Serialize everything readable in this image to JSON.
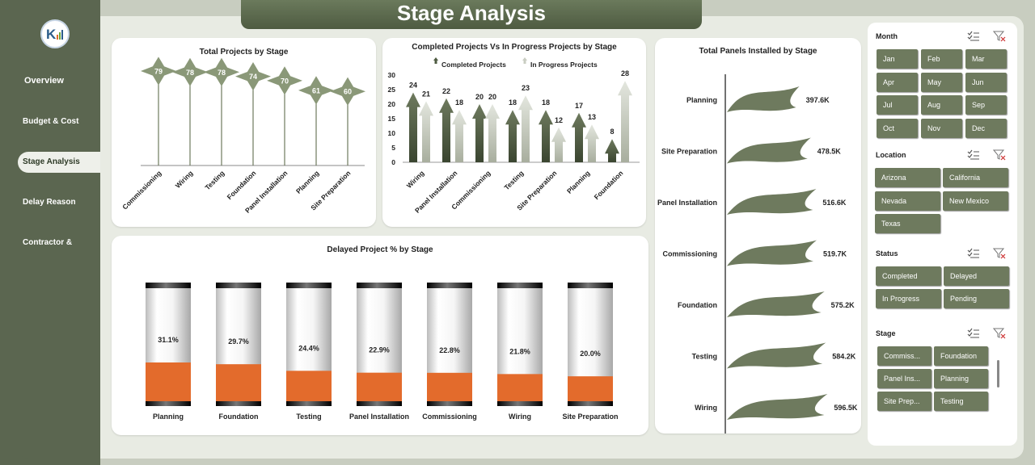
{
  "header": {
    "title": "Stage Analysis"
  },
  "nav": [
    {
      "label": "Overview"
    },
    {
      "label": "Budget & Cost"
    },
    {
      "label": "Stage Analysis"
    },
    {
      "label": "Delay Reason"
    },
    {
      "label": "Contractor &"
    }
  ],
  "charts": {
    "total_projects": {
      "title": "Total Projects by Stage",
      "chart_data": {
        "type": "bar",
        "categories": [
          "Commissioning",
          "Wiring",
          "Testing",
          "Foundation",
          "Panel Installation",
          "Planning",
          "Site Preparation"
        ],
        "values": [
          79,
          78,
          78,
          74,
          70,
          61,
          60
        ]
      }
    },
    "completed_vs_progress": {
      "title": "Completed Projects Vs In Progress Projects by Stage",
      "legend": [
        "Completed Projects",
        "In Progress Projects"
      ],
      "chart_data": {
        "type": "bar",
        "categories": [
          "Wiring",
          "Panel Installation",
          "Commissioning",
          "Testing",
          "Site Preparation",
          "Planning",
          "Foundation"
        ],
        "series": [
          {
            "name": "Completed Projects",
            "values": [
              24,
              22,
              20,
              18,
              18,
              17,
              8
            ]
          },
          {
            "name": "In Progress Projects",
            "values": [
              21,
              18,
              20,
              23,
              12,
              13,
              28
            ]
          }
        ],
        "yticks": [
          0,
          5,
          10,
          15,
          20,
          25,
          30
        ],
        "ylim": [
          0,
          30
        ]
      }
    },
    "panels_installed": {
      "title": "Total Panels Installed by Stage",
      "chart_data": {
        "type": "bar",
        "categories": [
          "Planning",
          "Site Preparation",
          "Panel Installation",
          "Commissioning",
          "Foundation",
          "Testing",
          "Wiring"
        ],
        "values": [
          397.6,
          478.5,
          516.6,
          519.7,
          575.2,
          584.2,
          596.5
        ],
        "labels": [
          "397.6K",
          "478.5K",
          "516.6K",
          "519.7K",
          "575.2K",
          "584.2K",
          "596.5K"
        ]
      }
    },
    "delayed_pct": {
      "title": "Delayed Project % by Stage",
      "chart_data": {
        "type": "bar",
        "categories": [
          "Planning",
          "Foundation",
          "Testing",
          "Panel Installation",
          "Commissioning",
          "Wiring",
          "Site Preparation"
        ],
        "values": [
          31.1,
          29.7,
          24.4,
          22.9,
          22.8,
          21.8,
          20.0
        ],
        "labels": [
          "31.1%",
          "29.7%",
          "24.4%",
          "22.9%",
          "22.8%",
          "21.8%",
          "20.0%"
        ]
      }
    }
  },
  "slicers": {
    "month": {
      "title": "Month",
      "items": [
        "Jan",
        "Feb",
        "Mar",
        "Apr",
        "May",
        "Jun",
        "Jul",
        "Aug",
        "Sep",
        "Oct",
        "Nov",
        "Dec"
      ]
    },
    "location": {
      "title": "Location",
      "items": [
        "Arizona",
        "California",
        "Nevada",
        "New Mexico",
        "Texas"
      ]
    },
    "status": {
      "title": "Status",
      "items": [
        "Completed",
        "Delayed",
        "In Progress",
        "Pending"
      ]
    },
    "stage": {
      "title": "Stage",
      "items": [
        "Commiss...",
        "Foundation",
        "Panel Ins...",
        "Planning",
        "Site Prep...",
        "Testing"
      ]
    }
  },
  "colors": {
    "olive": "#6e7a5e",
    "dark": "#4e5b41",
    "orange": "#e36b2c"
  }
}
